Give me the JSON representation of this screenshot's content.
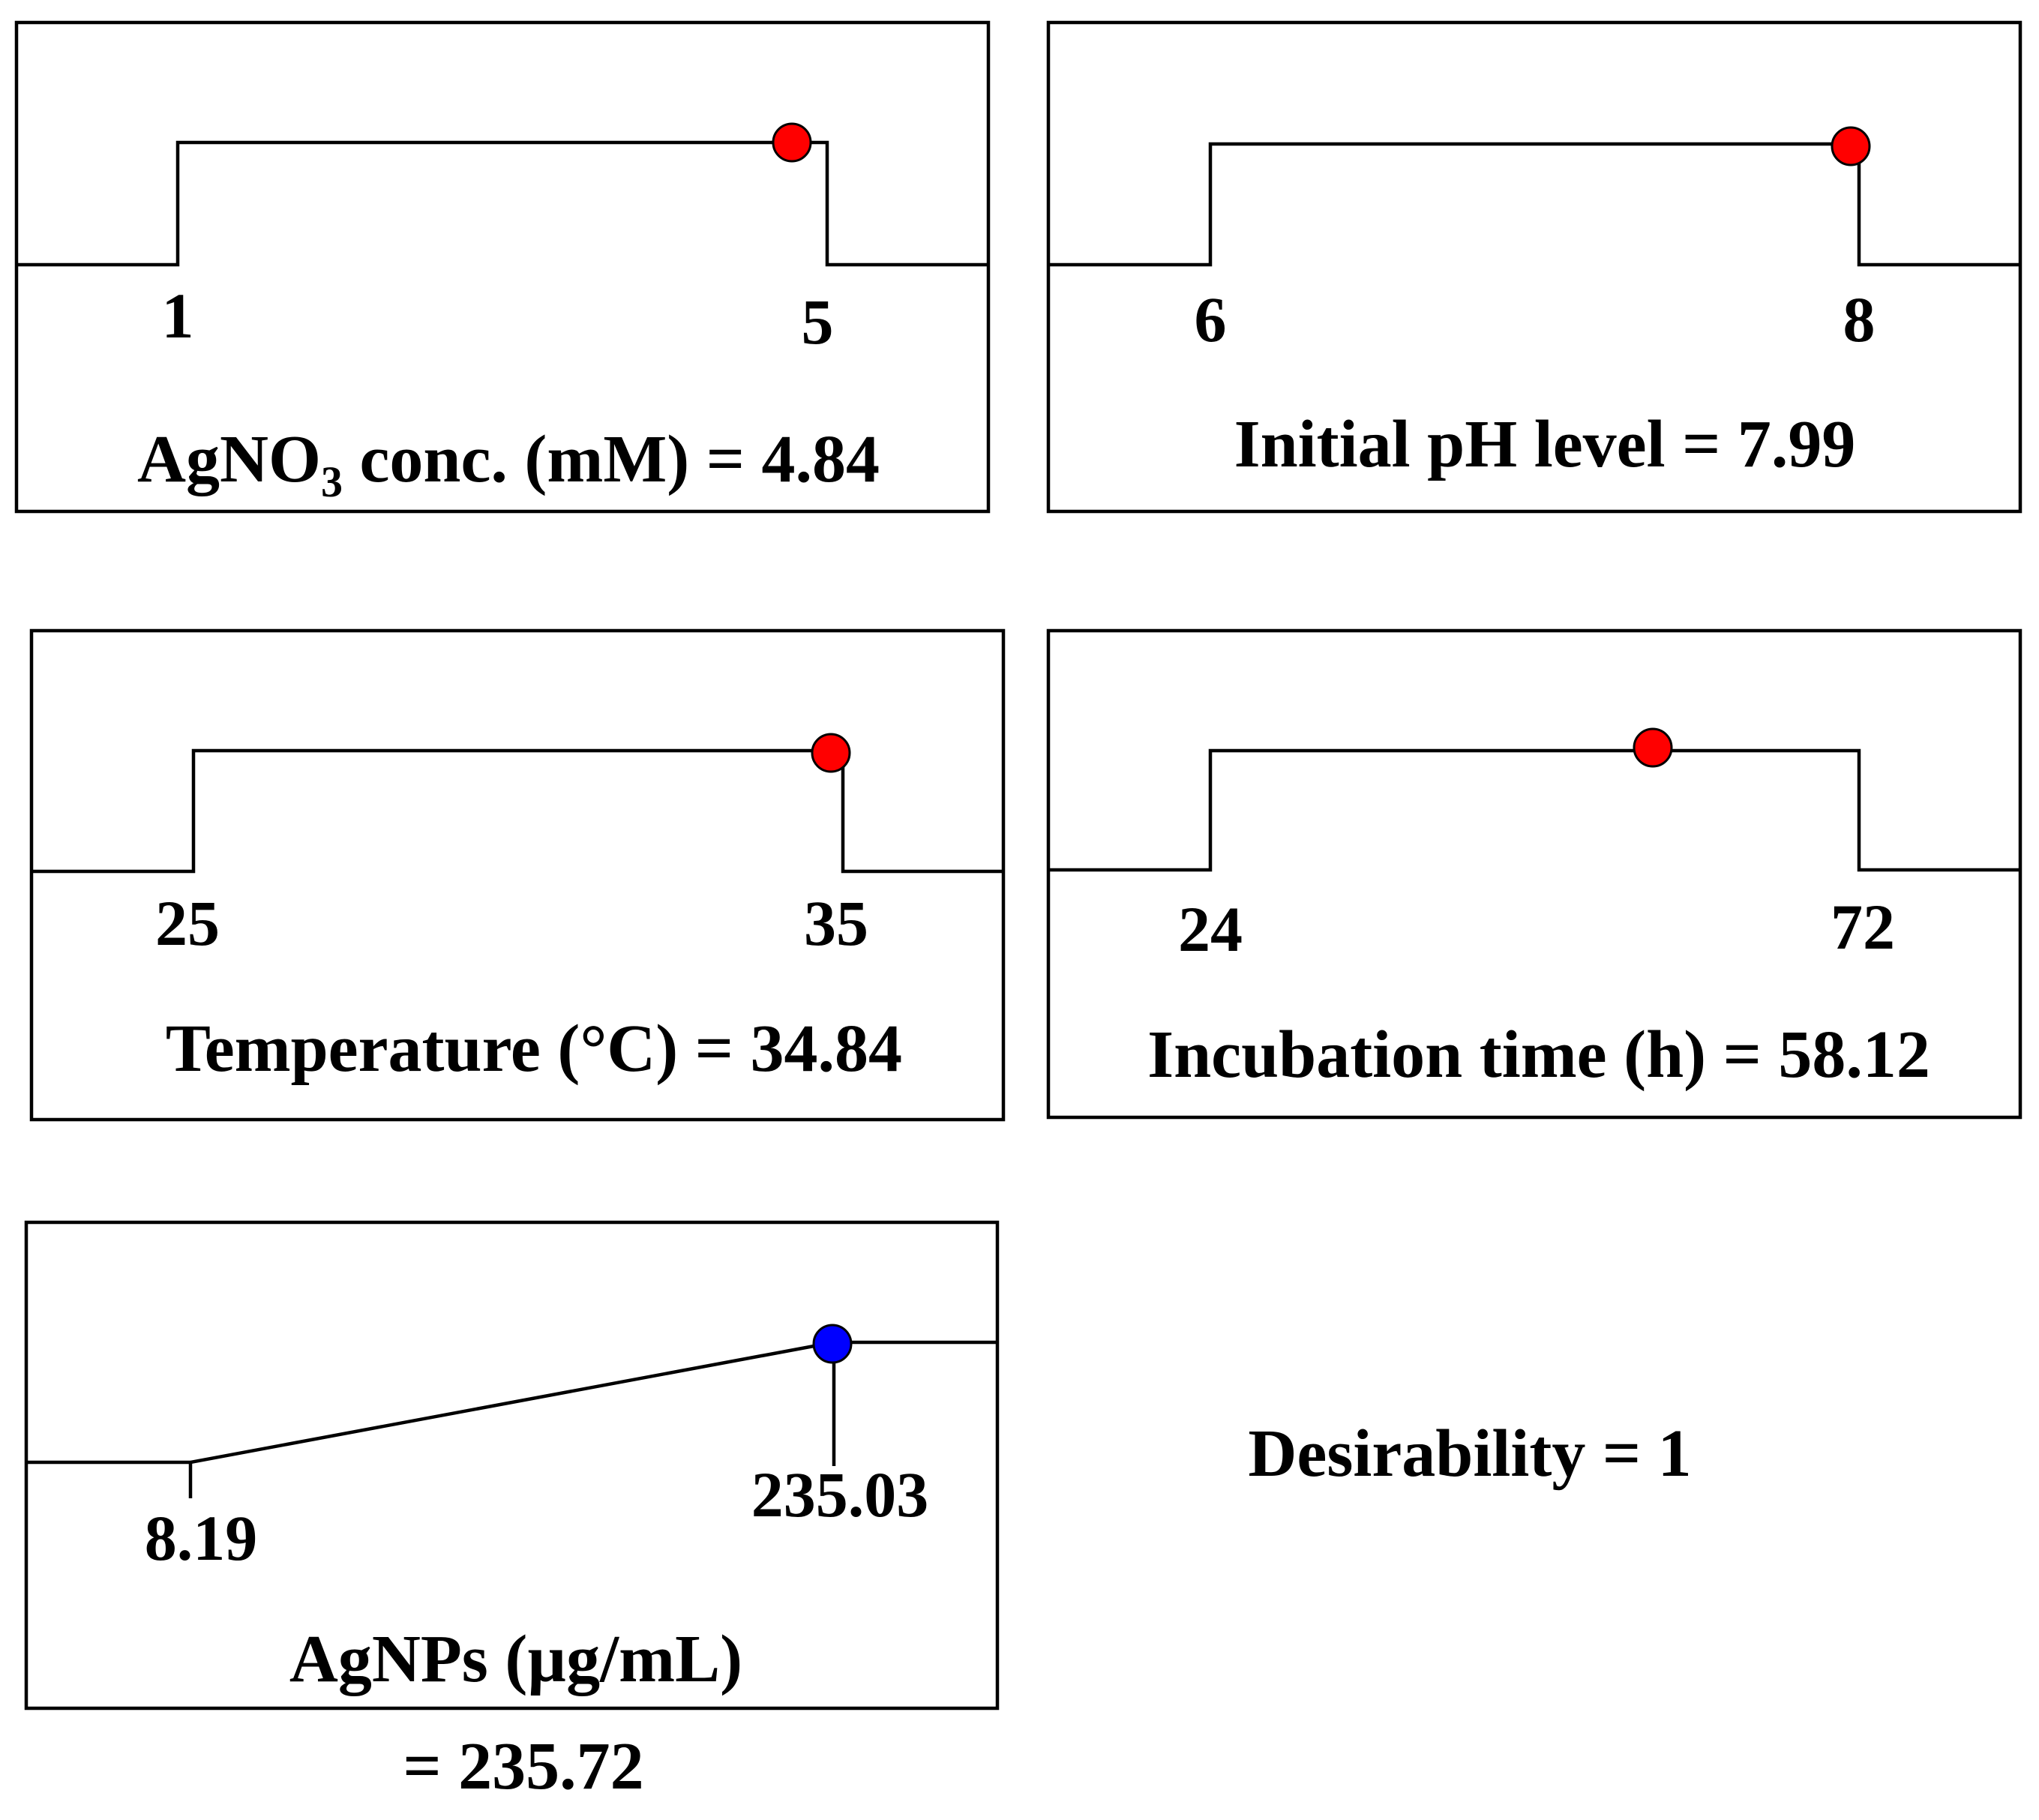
{
  "chart_data": [
    {
      "type": "desirability_ramp",
      "factor": "AgNO3 conc. (mM)",
      "title_main": "AgNO",
      "title_sub": "3",
      "title_rest": " conc. (mM) = 4.84",
      "low": 1,
      "high": 5,
      "low_label": "1",
      "high_label": "5",
      "value": 4.84,
      "marker_color": "#ff0000"
    },
    {
      "type": "desirability_ramp",
      "factor": "Initial pH level",
      "title": "Initial pH level = 7.99",
      "low": 6,
      "high": 8,
      "low_label": "6",
      "high_label": "8",
      "value": 7.99,
      "marker_color": "#ff0000"
    },
    {
      "type": "desirability_ramp",
      "factor": "Temperature (°C)",
      "title": "Temperature (°C) = 34.84",
      "low": 25,
      "high": 35,
      "low_label": "25",
      "high_label": "35",
      "value": 34.84,
      "marker_color": "#ff0000"
    },
    {
      "type": "desirability_ramp",
      "factor": "Incubation time (h)",
      "title": "Incubation time (h) = 58.12",
      "low": 24,
      "high": 72,
      "low_label": "24",
      "high_label": "72",
      "value": 58.12,
      "marker_color": "#ff0000"
    },
    {
      "type": "desirability_ramp_response",
      "response": "AgNPs (µg/mL)",
      "title_line1": "AgNPs (µg/mL)",
      "title_line2": "= 235.72",
      "low": 8.19,
      "high": 235.03,
      "low_label": "8.19",
      "high_label": "235.03",
      "value": 235.72,
      "marker_color": "#0000ff"
    }
  ],
  "desirability": {
    "label": "Desirability = 1",
    "value": 1
  }
}
